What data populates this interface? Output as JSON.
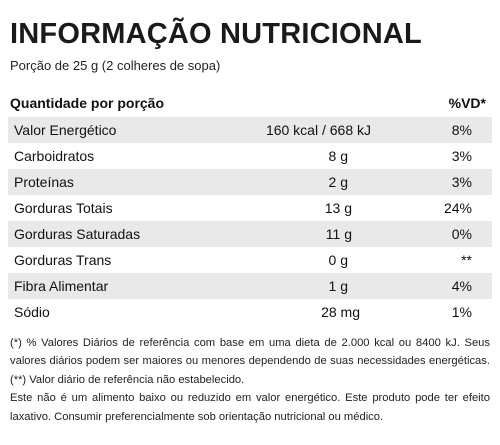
{
  "title": "INFORMAÇÃO NUTRICIONAL",
  "portion": "Porção de 25 g (2 colheres de sopa)",
  "header": {
    "quantity": "Quantidade por porção",
    "vd": "%VD*"
  },
  "rows": [
    {
      "name": "Valor Energético",
      "amount": "160 kcal / 668 kJ",
      "vd": "8%"
    },
    {
      "name": "Carboidratos",
      "amount": "8 g",
      "vd": "3%"
    },
    {
      "name": "Proteínas",
      "amount": "2 g",
      "vd": "3%"
    },
    {
      "name": "Gorduras Totais",
      "amount": "13 g",
      "vd": "24%"
    },
    {
      "name": "Gorduras Saturadas",
      "amount": "11 g",
      "vd": "0%"
    },
    {
      "name": "Gorduras Trans",
      "amount": "0 g",
      "vd": "**"
    },
    {
      "name": "Fibra Alimentar",
      "amount": "1 g",
      "vd": "4%"
    },
    {
      "name": "Sódio",
      "amount": "28 mg",
      "vd": "1%"
    }
  ],
  "notes": {
    "line1": "(*) % Valores Diários de referência com base em uma dieta de 2.000 kcal ou 8400 kJ. Seus valores diários podem ser maiores ou menores dependendo de suas necessidades energéticas.(**) Valor diário de referência não estabelecido.",
    "line2": "Este não é um alimento baixo ou reduzido em valor energético. Este produto pode ter efeito laxativo. Consumir preferencialmente sob orientação nutricional ou médico."
  },
  "colors": {
    "shade": "#e9e9e9",
    "text": "#111111"
  }
}
